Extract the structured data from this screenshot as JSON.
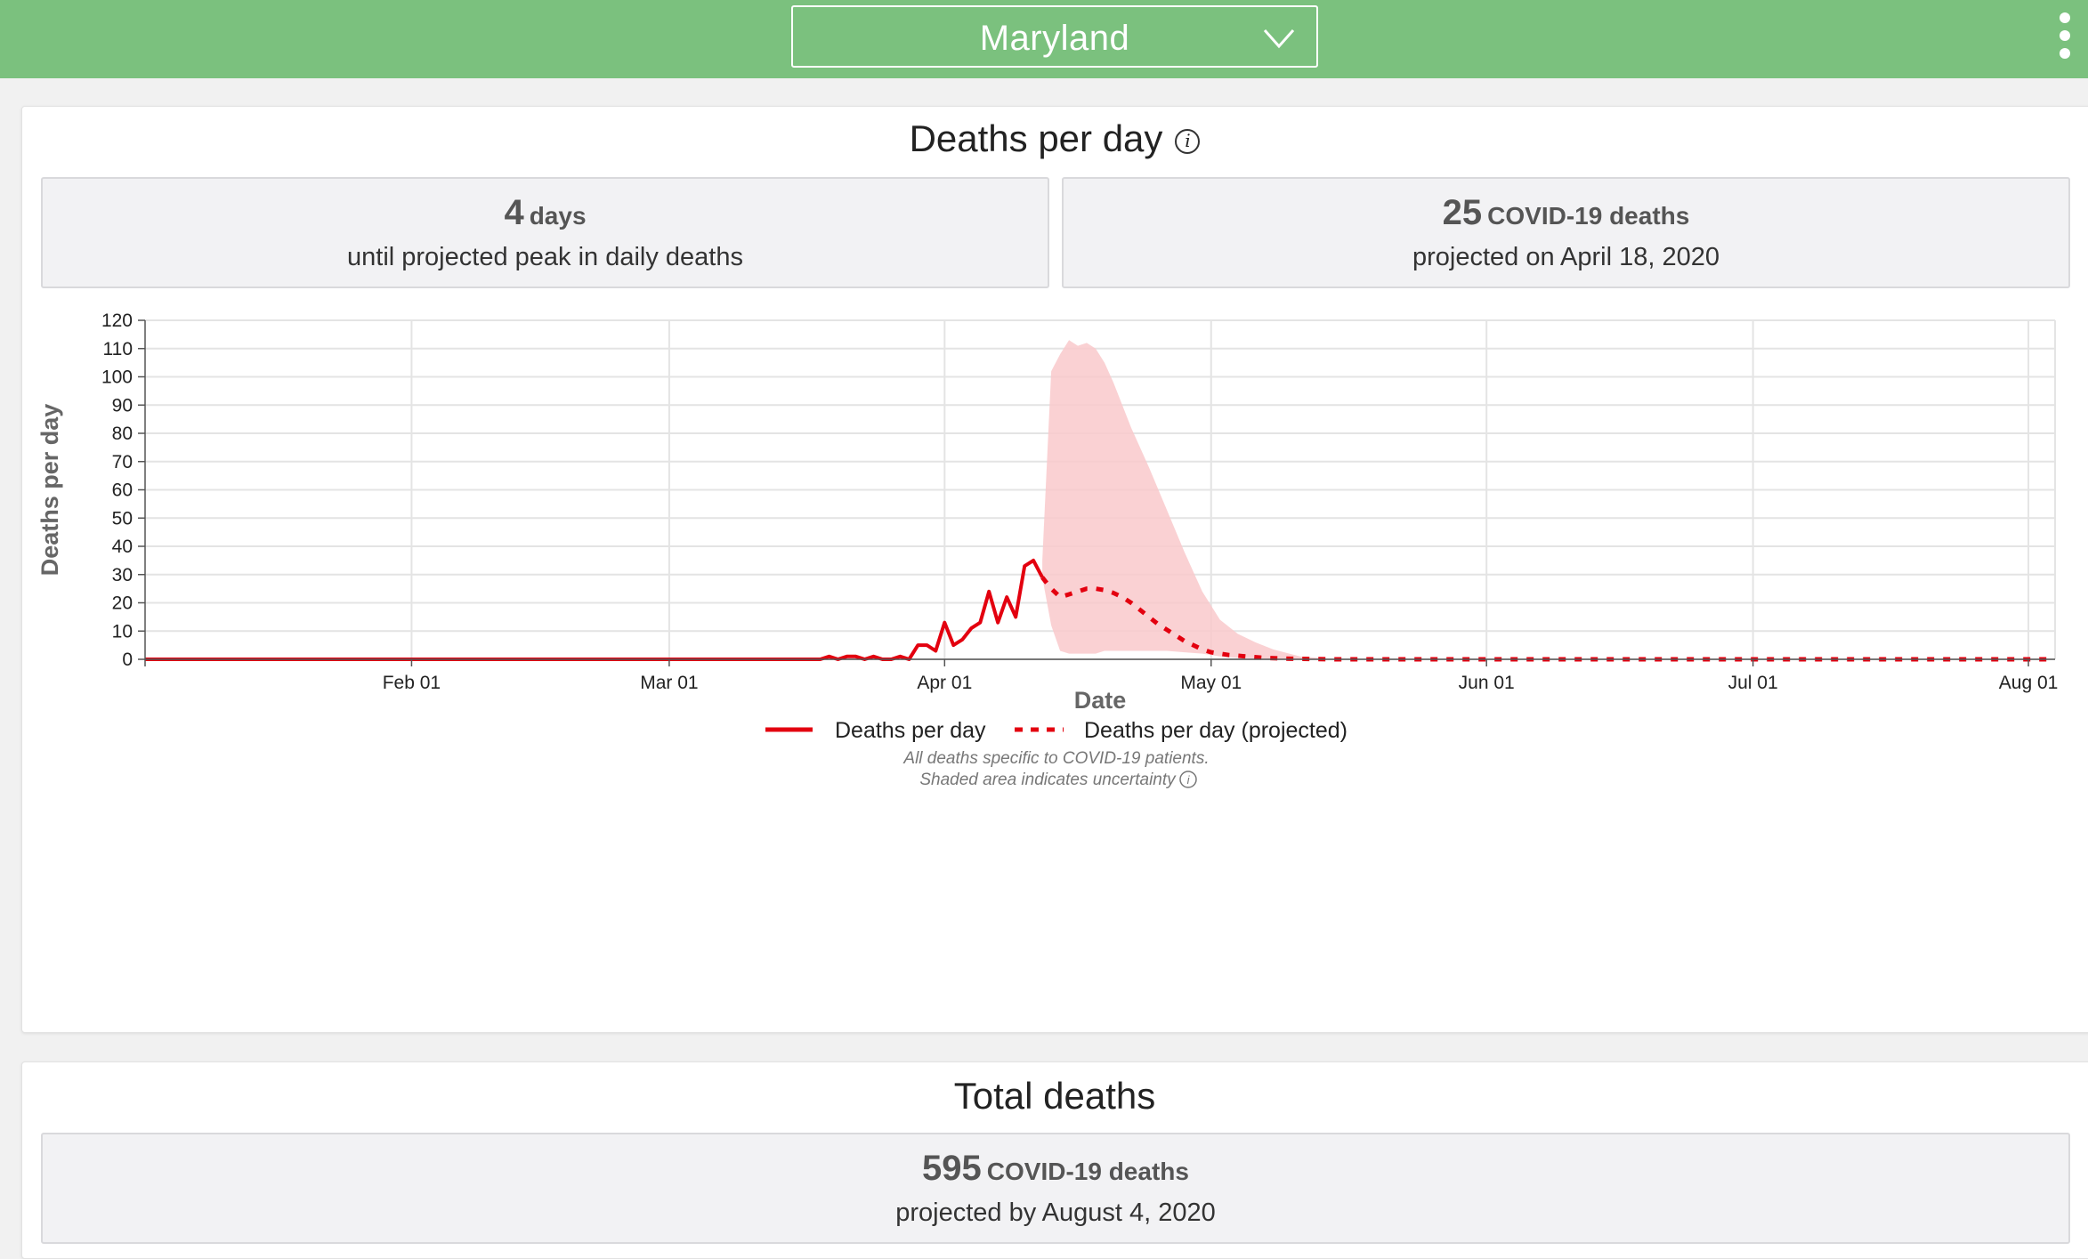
{
  "header": {
    "selected_state": "Maryland",
    "colors": {
      "bar": "#7bc17e",
      "text": "#ffffff"
    },
    "menu_icon": "more-vertical-icon",
    "dropdown_icon": "chevron-down-icon"
  },
  "deaths_per_day": {
    "title": "Deaths per day",
    "info_icon": "info-icon",
    "stats": [
      {
        "value": "4",
        "unit": "days",
        "caption": "until projected peak in daily deaths"
      },
      {
        "value": "25",
        "unit": "COVID-19 deaths",
        "caption": "projected on April 18, 2020"
      }
    ],
    "notes": {
      "line1": "All deaths specific to COVID-19 patients.",
      "line2": "Shaded area indicates uncertainty"
    }
  },
  "total_deaths": {
    "title": "Total deaths",
    "stat": {
      "value": "595",
      "unit": "COVID-19 deaths",
      "caption": "projected by August 4, 2020"
    }
  },
  "chart_data": {
    "type": "line",
    "xlabel": "Date",
    "ylabel": "Deaths per day",
    "ylim": [
      0,
      120
    ],
    "yticks": [
      0,
      10,
      20,
      30,
      40,
      50,
      60,
      70,
      80,
      90,
      100,
      110,
      120
    ],
    "xlim": [
      "2020-01-02",
      "2020-08-04"
    ],
    "xticks": [
      {
        "date": "2020-02-01",
        "label": "Feb 01"
      },
      {
        "date": "2020-03-01",
        "label": "Mar 01"
      },
      {
        "date": "2020-04-01",
        "label": "Apr 01"
      },
      {
        "date": "2020-05-01",
        "label": "May 01"
      },
      {
        "date": "2020-06-01",
        "label": "Jun 01"
      },
      {
        "date": "2020-07-01",
        "label": "Jul 01"
      },
      {
        "date": "2020-08-01",
        "label": "Aug 01"
      }
    ],
    "grid": true,
    "legend_position": "bottom",
    "colors": {
      "line": "#e3000f",
      "band": "#f9c9cb"
    },
    "series": [
      {
        "name": "Deaths per day",
        "style": "solid",
        "points": [
          [
            "2020-01-02",
            0
          ],
          [
            "2020-03-18",
            0
          ],
          [
            "2020-03-19",
            1
          ],
          [
            "2020-03-20",
            0
          ],
          [
            "2020-03-21",
            1
          ],
          [
            "2020-03-22",
            1
          ],
          [
            "2020-03-23",
            0
          ],
          [
            "2020-03-24",
            1
          ],
          [
            "2020-03-25",
            0
          ],
          [
            "2020-03-26",
            0
          ],
          [
            "2020-03-27",
            1
          ],
          [
            "2020-03-28",
            0
          ],
          [
            "2020-03-29",
            5
          ],
          [
            "2020-03-30",
            5
          ],
          [
            "2020-03-31",
            3
          ],
          [
            "2020-04-01",
            13
          ],
          [
            "2020-04-02",
            5
          ],
          [
            "2020-04-03",
            7
          ],
          [
            "2020-04-04",
            11
          ],
          [
            "2020-04-05",
            13
          ],
          [
            "2020-04-06",
            24
          ],
          [
            "2020-04-07",
            13
          ],
          [
            "2020-04-08",
            22
          ],
          [
            "2020-04-09",
            15
          ],
          [
            "2020-04-10",
            33
          ],
          [
            "2020-04-11",
            35
          ],
          [
            "2020-04-12",
            29
          ]
        ]
      },
      {
        "name": "Deaths per day (projected)",
        "style": "dashed",
        "points": [
          [
            "2020-04-12",
            29
          ],
          [
            "2020-04-13",
            25
          ],
          [
            "2020-04-14",
            22
          ],
          [
            "2020-04-15",
            23
          ],
          [
            "2020-04-16",
            24
          ],
          [
            "2020-04-17",
            25
          ],
          [
            "2020-04-18",
            25
          ],
          [
            "2020-04-19",
            24.5
          ],
          [
            "2020-04-20",
            23.5
          ],
          [
            "2020-04-21",
            22
          ],
          [
            "2020-04-22",
            20
          ],
          [
            "2020-04-23",
            17.5
          ],
          [
            "2020-04-24",
            15
          ],
          [
            "2020-04-25",
            12.5
          ],
          [
            "2020-04-26",
            10.5
          ],
          [
            "2020-04-27",
            8.5
          ],
          [
            "2020-04-28",
            6.5
          ],
          [
            "2020-04-29",
            5
          ],
          [
            "2020-04-30",
            3.5
          ],
          [
            "2020-05-01",
            2.5
          ],
          [
            "2020-05-03",
            1.5
          ],
          [
            "2020-05-05",
            1
          ],
          [
            "2020-05-07",
            0.5
          ],
          [
            "2020-05-10",
            0.2
          ],
          [
            "2020-05-15",
            0
          ],
          [
            "2020-08-04",
            0
          ]
        ]
      }
    ],
    "uncertainty_band": [
      [
        "2020-04-12",
        29,
        35
      ],
      [
        "2020-04-13",
        12,
        102
      ],
      [
        "2020-04-14",
        3,
        108
      ],
      [
        "2020-04-15",
        2,
        113
      ],
      [
        "2020-04-16",
        2,
        111
      ],
      [
        "2020-04-17",
        2,
        112
      ],
      [
        "2020-04-18",
        2,
        110
      ],
      [
        "2020-04-19",
        3,
        105
      ],
      [
        "2020-04-20",
        3,
        98
      ],
      [
        "2020-04-22",
        3,
        82
      ],
      [
        "2020-04-24",
        3,
        68
      ],
      [
        "2020-04-26",
        3,
        53
      ],
      [
        "2020-04-28",
        2.5,
        38
      ],
      [
        "2020-04-30",
        2,
        24
      ],
      [
        "2020-05-02",
        1,
        14
      ],
      [
        "2020-05-04",
        0.5,
        9
      ],
      [
        "2020-05-06",
        0.3,
        6
      ],
      [
        "2020-05-08",
        0.2,
        3.5
      ],
      [
        "2020-05-11",
        0,
        1
      ],
      [
        "2020-05-15",
        0,
        0
      ]
    ]
  }
}
